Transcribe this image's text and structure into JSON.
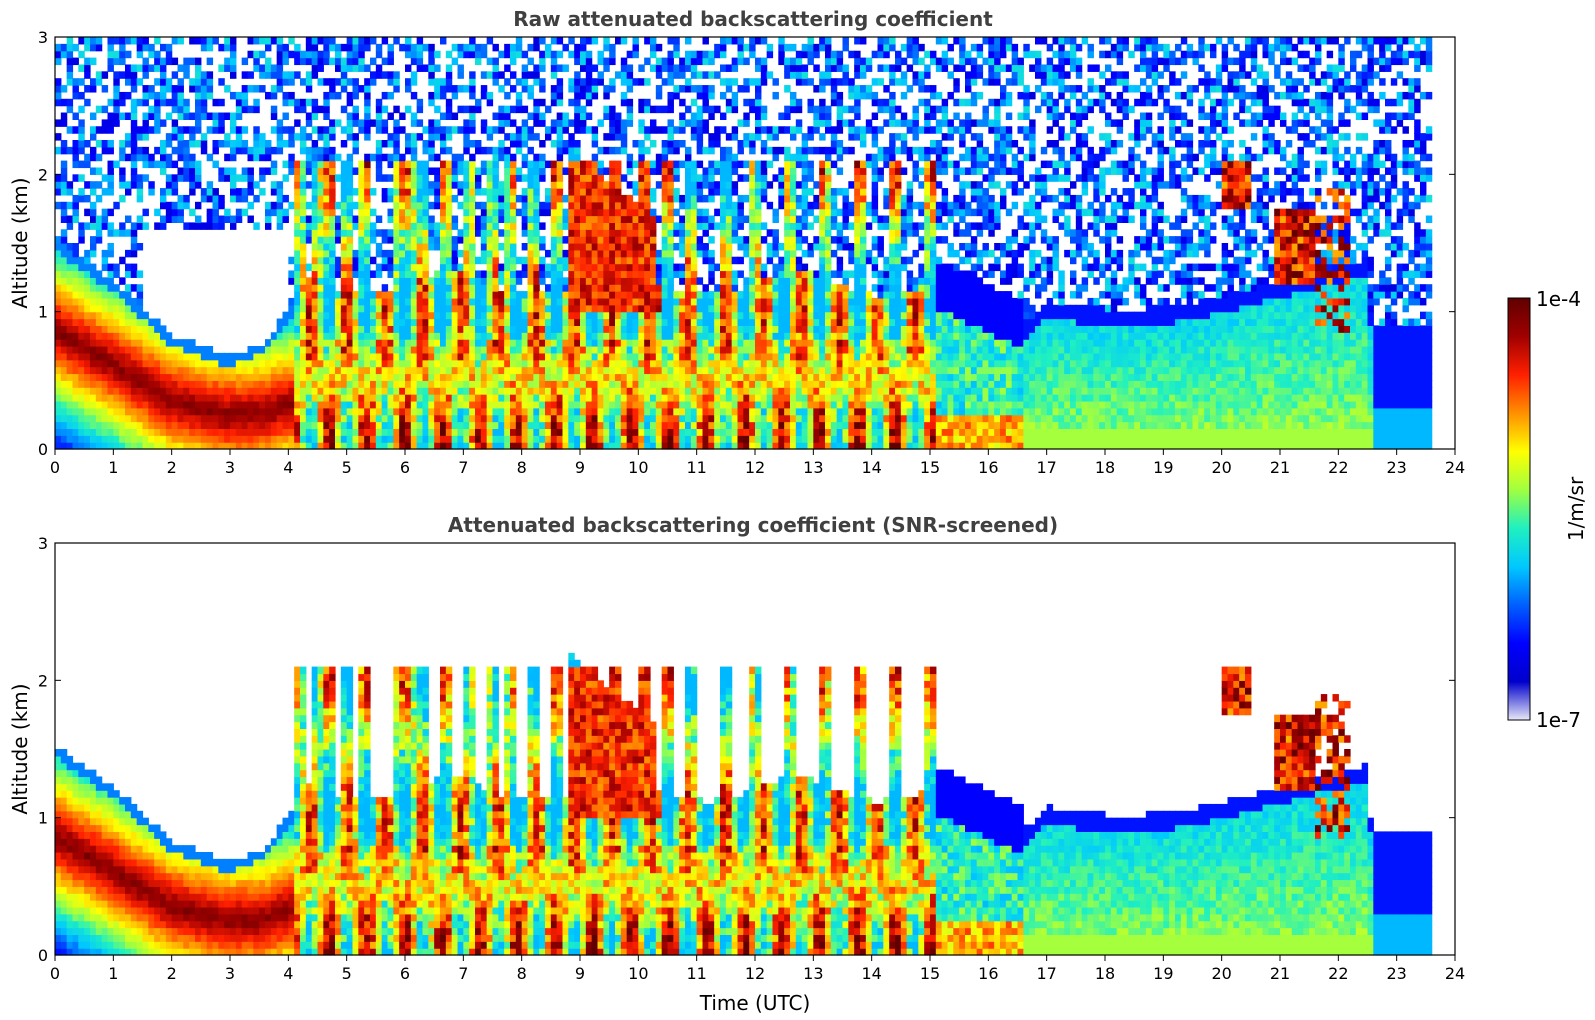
{
  "chart_data": [
    {
      "type": "heatmap",
      "title": "Raw attenuated backscattering coefficient",
      "xlabel": "",
      "ylabel": "Altitude (km)",
      "xlim": [
        0,
        24
      ],
      "ylim": [
        0,
        3
      ],
      "xticks": [
        "0",
        "1",
        "2",
        "3",
        "4",
        "5",
        "6",
        "7",
        "8",
        "9",
        "10",
        "11",
        "12",
        "13",
        "14",
        "15",
        "16",
        "17",
        "18",
        "19",
        "20",
        "21",
        "22",
        "23",
        "24"
      ],
      "yticks": [
        "0",
        "1",
        "2",
        "3"
      ],
      "screened": false,
      "data_end_hour": 23.6,
      "description_profile": {
        "boundary_layer_top_km": [
          [
            0,
            1.45
          ],
          [
            1,
            1.15
          ],
          [
            2,
            0.75
          ],
          [
            3,
            0.6
          ],
          [
            3.6,
            0.7
          ],
          [
            4.1,
            1.0
          ]
        ],
        "cloud_streak_hours": [
          4.2,
          4.6,
          5.0,
          5.3,
          5.9,
          6.2,
          6.6,
          7.1,
          7.8,
          8.2,
          9.3,
          10.1,
          10.8,
          11.5,
          12.6,
          13.8,
          14.5,
          15.0
        ],
        "elevated_layer_hours": [
          20.1,
          21.0,
          21.6,
          22.1
        ],
        "noise_floor_start_km": 1.0
      }
    },
    {
      "type": "heatmap",
      "title": "Attenuated backscattering coefficient (SNR-screened)",
      "xlabel": "Time (UTC)",
      "ylabel": "Altitude (km)",
      "xlim": [
        0,
        24
      ],
      "ylim": [
        0,
        3
      ],
      "xticks": [
        "0",
        "1",
        "2",
        "3",
        "4",
        "5",
        "6",
        "7",
        "8",
        "9",
        "10",
        "11",
        "12",
        "13",
        "14",
        "15",
        "16",
        "17",
        "18",
        "19",
        "20",
        "21",
        "22",
        "23",
        "24"
      ],
      "yticks": [
        "0",
        "1",
        "2",
        "3"
      ],
      "screened": true,
      "data_end_hour": 23.6
    }
  ],
  "colorbar": {
    "label": "1/m/sr",
    "max_label": "1e-4",
    "min_label": "1e-7",
    "scale": "log",
    "range": [
      1e-07,
      0.0001
    ],
    "colormap": [
      "#e8e8f8",
      "#0000cc",
      "#0000ff",
      "#0060ff",
      "#00c8ff",
      "#20f0c0",
      "#a0ff40",
      "#ffff00",
      "#ff9000",
      "#ff2000",
      "#a00000",
      "#600000"
    ]
  }
}
